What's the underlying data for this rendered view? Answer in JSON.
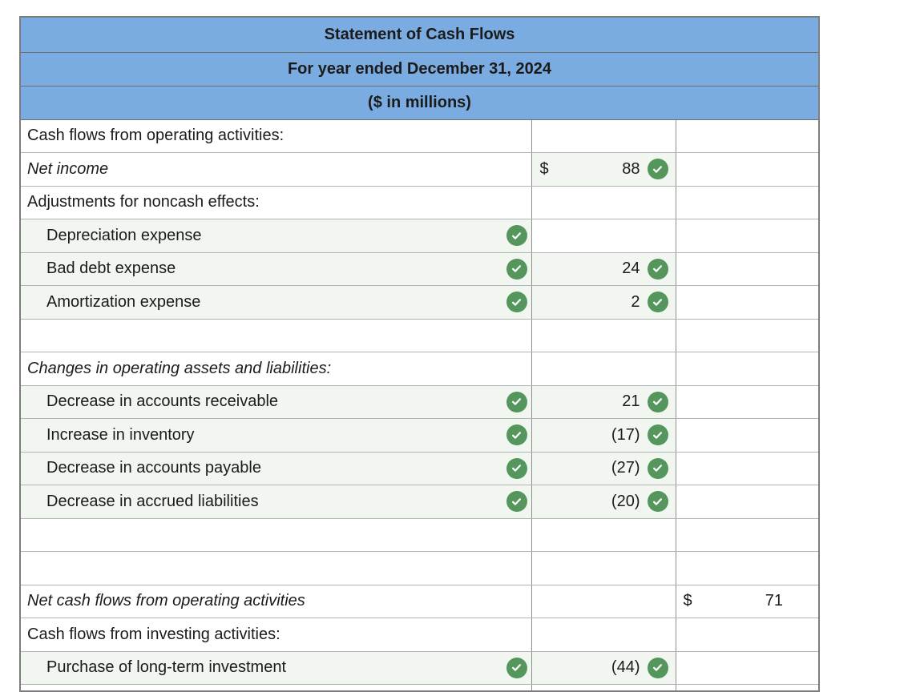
{
  "colors": {
    "header_blue": "#7aace1",
    "check_green": "#55965c",
    "cell_tint": "#f2f6f0",
    "border_outer": "#7d7d7d",
    "border_header": "#6f6f6f",
    "border_horizontal": "#b3b3b3",
    "border_vertical": "#8f8f8f",
    "text": "#1b1b1b"
  },
  "icons": {
    "check": "check-icon"
  },
  "statement": {
    "title": "Statement of Cash Flows",
    "period": "For year ended December 31, 2024",
    "units": "($ in millions)",
    "rows": [
      {
        "label": "Cash flows from operating activities:"
      },
      {
        "label": "Net income",
        "italic": true,
        "amount": {
          "dollar": "$",
          "value": "88",
          "check": true,
          "filled": true
        }
      },
      {
        "label": "Adjustments for noncash effects:"
      },
      {
        "label": "Depreciation expense",
        "indent": true,
        "label_check": true,
        "label_filled": true
      },
      {
        "label": "Bad debt expense",
        "indent": true,
        "label_check": true,
        "label_filled": true,
        "amount": {
          "value": "24",
          "check": true,
          "filled": true
        }
      },
      {
        "label": "Amortization expense",
        "indent": true,
        "label_check": true,
        "label_filled": true,
        "amount": {
          "value": "2",
          "check": true,
          "filled": true
        }
      },
      {
        "label": ""
      },
      {
        "label": "Changes in operating assets and liabilities:",
        "italic": true
      },
      {
        "label": "Decrease in accounts receivable",
        "indent": true,
        "label_check": true,
        "label_filled": true,
        "amount": {
          "value": "21",
          "check": true,
          "filled": true
        }
      },
      {
        "label": "Increase in inventory",
        "indent": true,
        "label_check": true,
        "label_filled": true,
        "amount": {
          "value": "(17)",
          "check": true,
          "filled": true
        }
      },
      {
        "label": "Decrease in accounts payable",
        "indent": true,
        "label_check": true,
        "label_filled": true,
        "amount": {
          "value": "(27)",
          "check": true,
          "filled": true
        }
      },
      {
        "label": "Decrease in accrued liabilities",
        "indent": true,
        "label_check": true,
        "label_filled": true,
        "amount": {
          "value": "(20)",
          "check": true,
          "filled": true
        }
      },
      {
        "label": ""
      },
      {
        "label": ""
      },
      {
        "label": "Net cash flows from operating activities",
        "italic": true,
        "total": {
          "dollar": "$",
          "value": "71"
        }
      },
      {
        "label": "Cash flows from investing activities:"
      },
      {
        "label": "Purchase of long-term investment",
        "indent": true,
        "label_check": true,
        "label_filled": true,
        "amount": {
          "value": "(44)",
          "check": true,
          "filled": true
        }
      },
      {
        "label": "",
        "partial": true
      }
    ]
  }
}
